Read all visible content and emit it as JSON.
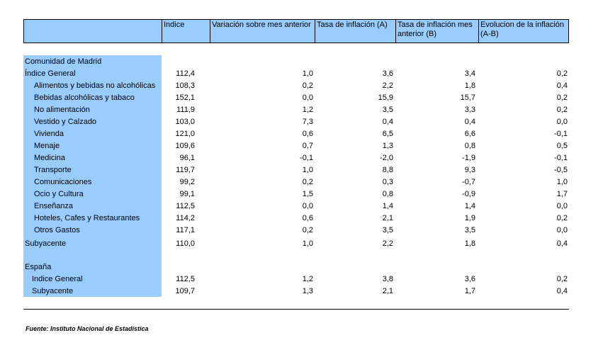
{
  "header": {
    "col_indice": "Indice",
    "col_variacion": "Variación sobre mes anterior",
    "col_tasa_a": "Tasa de inflación (A)",
    "col_tasa_b": "Tasa de inflación mes anterior (B)",
    "col_evolucion": "Evolucion de la inflación (A-B)"
  },
  "madrid": {
    "title": "Comunidad de Madrid",
    "rows": [
      {
        "label": "Índice General",
        "indice": "112,4",
        "variacion": "1,0",
        "tasa_a": "3,6",
        "tasa_b": "3,4",
        "evolucion": "0,2"
      },
      {
        "label": "Alimentos y bebidas no alcohólicas",
        "indice": "108,3",
        "variacion": "0,2",
        "tasa_a": "2,2",
        "tasa_b": "1,8",
        "evolucion": "0,4"
      },
      {
        "label": "Bebidas alcohólicas y tabaco",
        "indice": "152,1",
        "variacion": "0,0",
        "tasa_a": "15,9",
        "tasa_b": "15,7",
        "evolucion": "0,2"
      },
      {
        "label": "No alimentación",
        "indice": "111,9",
        "variacion": "1,2",
        "tasa_a": "3,5",
        "tasa_b": "3,3",
        "evolucion": "0,2"
      },
      {
        "label": "Vestido y Calzado",
        "indice": "103,0",
        "variacion": "7,3",
        "tasa_a": "0,4",
        "tasa_b": "0,4",
        "evolucion": "0,0"
      },
      {
        "label": "Vivienda",
        "indice": "121,0",
        "variacion": "0,6",
        "tasa_a": "6,5",
        "tasa_b": "6,6",
        "evolucion": "-0,1"
      },
      {
        "label": "Menaje",
        "indice": "109,6",
        "variacion": "0,7",
        "tasa_a": "1,3",
        "tasa_b": "0,8",
        "evolucion": "0,5"
      },
      {
        "label": "Medicina",
        "indice": "96,1",
        "variacion": "-0,1",
        "tasa_a": "-2,0",
        "tasa_b": "-1,9",
        "evolucion": "-0,1"
      },
      {
        "label": "Transporte",
        "indice": "119,7",
        "variacion": "1,0",
        "tasa_a": "8,8",
        "tasa_b": "9,3",
        "evolucion": "-0,5"
      },
      {
        "label": "Comunicaciones",
        "indice": "99,2",
        "variacion": "0,2",
        "tasa_a": "0,3",
        "tasa_b": "-0,7",
        "evolucion": "1,0"
      },
      {
        "label": "Ocio y Cultura",
        "indice": "99,1",
        "variacion": "1,5",
        "tasa_a": "0,8",
        "tasa_b": "-0,9",
        "evolucion": "1,7"
      },
      {
        "label": "Enseñanza",
        "indice": "112,5",
        "variacion": "0,0",
        "tasa_a": "1,4",
        "tasa_b": "1,4",
        "evolucion": "0,0"
      },
      {
        "label": "Hoteles, Cafes y Restaurantes",
        "indice": "114,2",
        "variacion": "0,6",
        "tasa_a": "2,1",
        "tasa_b": "1,9",
        "evolucion": "0,2"
      },
      {
        "label": "Otros Gastos",
        "indice": "117,1",
        "variacion": "0,2",
        "tasa_a": "3,5",
        "tasa_b": "3,5",
        "evolucion": "0,0"
      }
    ],
    "subyacente": {
      "label": "Subyacente",
      "indice": "110,0",
      "variacion": "1,0",
      "tasa_a": "2,2",
      "tasa_b": "1,8",
      "evolucion": "0,4"
    }
  },
  "espana": {
    "title": "España",
    "rows": [
      {
        "label": "Indice General",
        "indice": "112,5",
        "variacion": "1,2",
        "tasa_a": "3,8",
        "tasa_b": "3,6",
        "evolucion": "0,2"
      },
      {
        "label": "Subyacente",
        "indice": "109,7",
        "variacion": "1,3",
        "tasa_a": "2,1",
        "tasa_b": "1,7",
        "evolucion": "0,4"
      }
    ]
  },
  "source": "Fuente: Instituto Nacional de Estadística"
}
